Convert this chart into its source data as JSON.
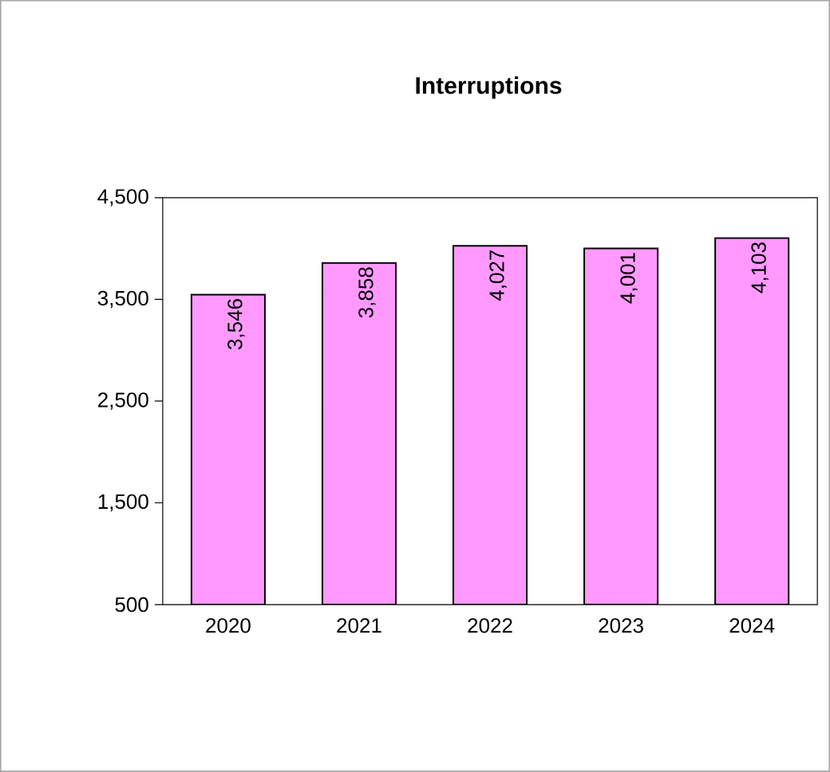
{
  "chart_data": {
    "type": "bar",
    "title": "Interruptions",
    "categories": [
      "2020",
      "2021",
      "2022",
      "2023",
      "2024"
    ],
    "values": [
      3546,
      3858,
      4027,
      4001,
      4103
    ],
    "value_labels": [
      "3,546",
      "3,858",
      "4,027",
      "4,001",
      "4,103"
    ],
    "color": "#ff99ff",
    "ylim": [
      500,
      4500
    ],
    "yticks": [
      {
        "value": 500,
        "label": "500"
      },
      {
        "value": 1500,
        "label": "1,500"
      },
      {
        "value": 2500,
        "label": "2,500"
      },
      {
        "value": 3500,
        "label": "3,500"
      },
      {
        "value": 4500,
        "label": "4,500"
      }
    ],
    "grid": false
  }
}
